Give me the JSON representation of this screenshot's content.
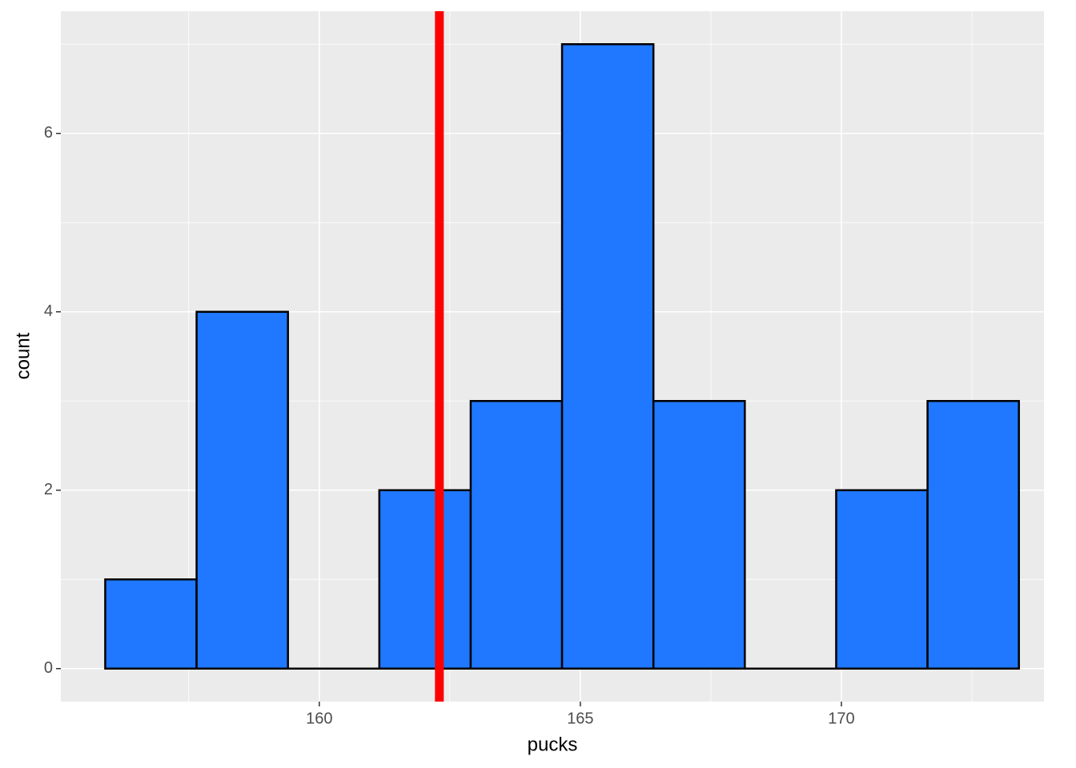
{
  "chart_data": {
    "type": "histogram",
    "x_label": "pucks",
    "y_label": "count",
    "bins": [
      155.9,
      157.65,
      159.4,
      161.15,
      162.9,
      164.65,
      166.4,
      168.15,
      169.9,
      171.65,
      173.4
    ],
    "counts": [
      1,
      4,
      0,
      2,
      3,
      7,
      3,
      0,
      2,
      3
    ],
    "color": "#1f78ff",
    "edgecolor": "#000000",
    "xlim": [
      155.05,
      173.88
    ],
    "ylim": [
      -0.37,
      7.37
    ],
    "xticks": [
      160,
      165,
      170
    ],
    "yticks": [
      0,
      2,
      4,
      6
    ],
    "grid": true,
    "vline": {
      "x": 162.3,
      "color": "#ff0000"
    }
  }
}
